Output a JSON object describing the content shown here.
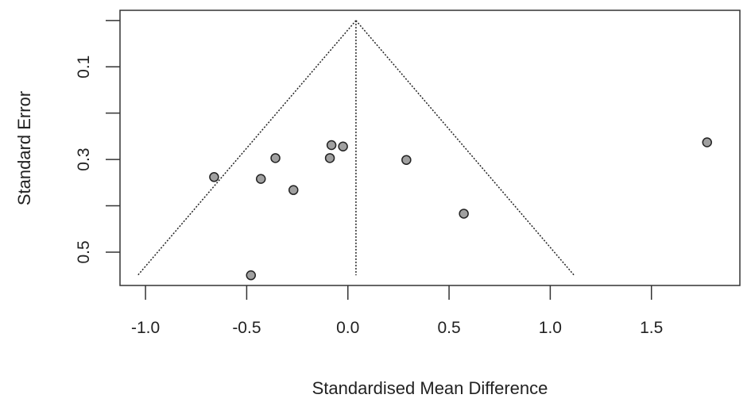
{
  "chart_data": {
    "type": "scatter",
    "subtype": "funnel",
    "title": "",
    "xlabel": "Standardised Mean Difference",
    "ylabel": "Standard Error",
    "xlim": [
      -1.126,
      1.937
    ],
    "ylim": [
      0,
      0.55
    ],
    "y_reversed": true,
    "x_ticks": [
      -1.0,
      -0.5,
      0.0,
      0.5,
      1.0,
      1.5
    ],
    "x_tick_labels": [
      "-1.0",
      "-0.5",
      "0.0",
      "0.5",
      "1.0",
      "1.5"
    ],
    "y_ticks": [
      0.0,
      0.1,
      0.2,
      0.3,
      0.4,
      0.5
    ],
    "y_tick_labels": [
      "",
      "0.1",
      "",
      "0.3",
      "",
      "0.5"
    ],
    "grid": false,
    "summary_estimate": 0.04,
    "funnel_z": 1.96,
    "points": [
      {
        "x": -0.661,
        "y": 0.338
      },
      {
        "x": -0.43,
        "y": 0.342
      },
      {
        "x": -0.358,
        "y": 0.297
      },
      {
        "x": -0.269,
        "y": 0.366
      },
      {
        "x": -0.081,
        "y": 0.269
      },
      {
        "x": -0.024,
        "y": 0.272
      },
      {
        "x": -0.089,
        "y": 0.297
      },
      {
        "x": 0.289,
        "y": 0.301
      },
      {
        "x": 0.573,
        "y": 0.417
      },
      {
        "x": 1.775,
        "y": 0.263
      },
      {
        "x": -0.479,
        "y": 0.55
      }
    ],
    "colors": {
      "point_fill": "#a0a0a0",
      "point_stroke": "#222222",
      "line": "#222222"
    }
  }
}
